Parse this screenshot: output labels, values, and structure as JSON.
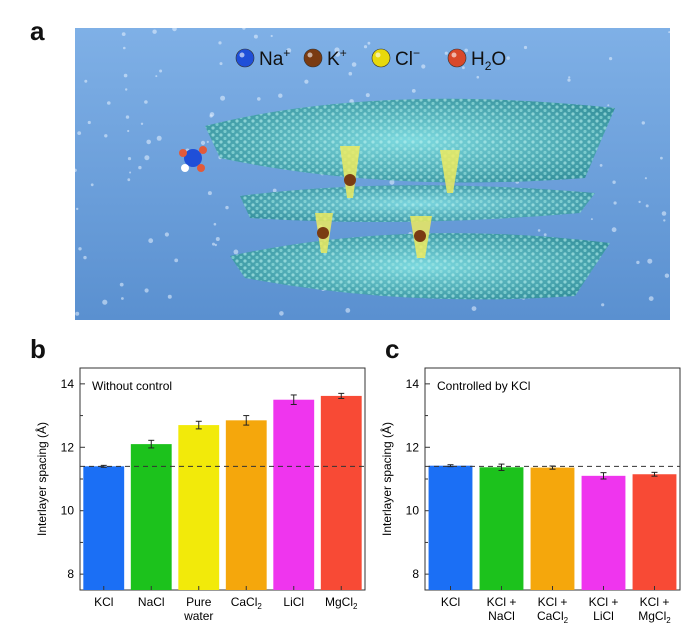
{
  "panels": {
    "a": "a",
    "b": "b",
    "c": "c"
  },
  "illustration": {
    "legend": [
      {
        "label": "Na",
        "sup": "+",
        "color": "#1f4fd8",
        "icon": "sodium-ion-sphere"
      },
      {
        "label": "K",
        "sup": "+",
        "color": "#7a3b12",
        "icon": "potassium-ion-sphere"
      },
      {
        "label": "Cl",
        "sup": "−",
        "color": "#e8d90c",
        "icon": "chloride-ion-sphere"
      },
      {
        "label": "H",
        "sub": "2",
        "tail": "O",
        "color": "#d9482a",
        "icon": "water-molecule-sphere"
      }
    ],
    "background_color": "#6ea0d8"
  },
  "chart_data": [
    {
      "type": "bar",
      "panel": "b",
      "annotation": "Without control",
      "ylabel": "Interlayer spacing (Å)",
      "ylim": [
        7.5,
        14.5
      ],
      "yticks": [
        8,
        10,
        12,
        14
      ],
      "reference_line": 11.4,
      "categories": [
        {
          "lines": [
            {
              "t": "KCl"
            }
          ]
        },
        {
          "lines": [
            {
              "t": "NaCl"
            }
          ]
        },
        {
          "lines": [
            {
              "t": "Pure"
            },
            {
              "t": "water"
            }
          ]
        },
        {
          "lines": [
            {
              "t": "CaCl",
              "sub": "2"
            }
          ]
        },
        {
          "lines": [
            {
              "t": "LiCl"
            }
          ]
        },
        {
          "lines": [
            {
              "t": "MgCl",
              "sub": "2"
            }
          ]
        }
      ],
      "values": [
        11.4,
        12.1,
        12.7,
        12.85,
        13.5,
        13.62
      ],
      "errors": [
        0.03,
        0.12,
        0.12,
        0.15,
        0.15,
        0.08
      ],
      "colors": [
        "#1b6ff5",
        "#1cc21c",
        "#f2ea0a",
        "#f5a70c",
        "#ef35ee",
        "#f84a35"
      ]
    },
    {
      "type": "bar",
      "panel": "c",
      "annotation": "Controlled by KCl",
      "ylabel": "Interlayer spacing (Å)",
      "ylim": [
        7.5,
        14.5
      ],
      "yticks": [
        8,
        10,
        12,
        14
      ],
      "reference_line": 11.4,
      "categories": [
        {
          "lines": [
            {
              "t": "KCl"
            }
          ]
        },
        {
          "lines": [
            {
              "t": "KCl +"
            },
            {
              "t": "NaCl"
            }
          ]
        },
        {
          "lines": [
            {
              "t": "KCl +"
            },
            {
              "t": "CaCl",
              "sub": "2"
            }
          ]
        },
        {
          "lines": [
            {
              "t": "KCl +"
            },
            {
              "t": "LiCl"
            }
          ]
        },
        {
          "lines": [
            {
              "t": "KCl +"
            },
            {
              "t": "MgCl",
              "sub": "2"
            }
          ]
        }
      ],
      "values": [
        11.42,
        11.37,
        11.36,
        11.1,
        11.15
      ],
      "errors": [
        0.03,
        0.1,
        0.05,
        0.1,
        0.06
      ],
      "colors": [
        "#1b6ff5",
        "#1cc21c",
        "#f5a70c",
        "#ef35ee",
        "#f84a35"
      ]
    }
  ]
}
